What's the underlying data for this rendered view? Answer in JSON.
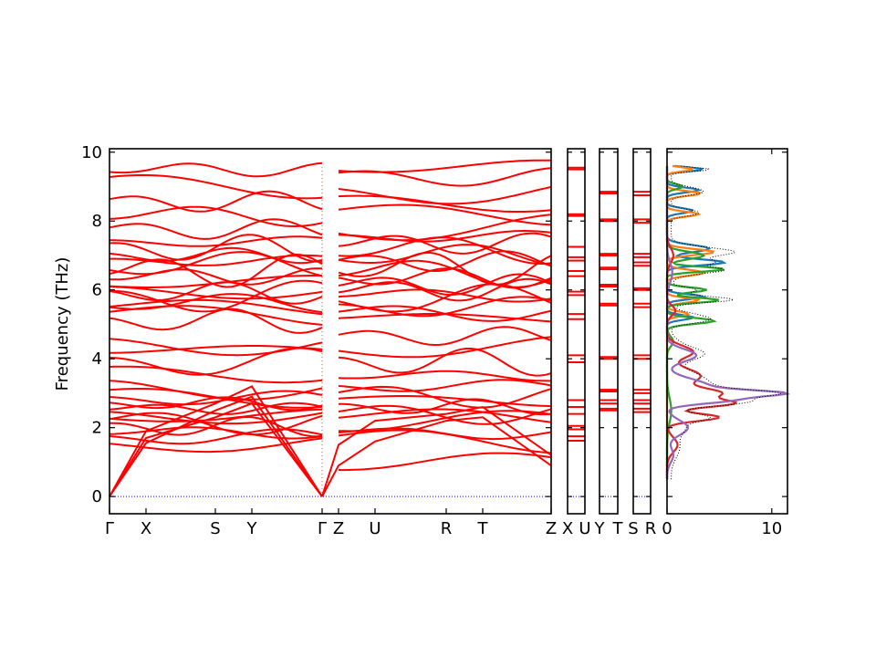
{
  "chart_data": {
    "type": "line",
    "ylabel": "Frequency (THz)",
    "ylim": [
      -0.5,
      10.1
    ],
    "yticks": [
      "0",
      "2",
      "4",
      "6",
      "8",
      "10"
    ],
    "xticks": [
      "Γ",
      "X",
      "S",
      "Y",
      "Γ",
      "Z",
      "U",
      "R",
      "T",
      "Z"
    ],
    "xticks_small_panels": [
      [
        "X",
        "U"
      ],
      [
        "Y",
        "T"
      ],
      [
        "S",
        "R"
      ]
    ],
    "dos_xlim": [
      0,
      11.5
    ],
    "dos_xticks": [
      "0",
      "10"
    ],
    "band_color": "#ff0000",
    "zero_line_color": "#0000ff",
    "dos_colors": [
      "#1f77b4",
      "#ff7f0e",
      "#2ca02c",
      "#d62728",
      "#9467bd"
    ],
    "dos_total_color": "#000000",
    "optical_levels_gamma": [
      1.58,
      1.72,
      1.86,
      2.02,
      2.18,
      2.34,
      2.45,
      2.55,
      2.7,
      2.85,
      2.95,
      3.3,
      3.65,
      3.9,
      4.2,
      4.55,
      5.1,
      5.25,
      5.45,
      5.6,
      5.8,
      5.92,
      6.05,
      6.2,
      6.4,
      6.55,
      6.7,
      6.85,
      7.0,
      7.2,
      7.4,
      7.75,
      8.15,
      8.55,
      9.1,
      9.5
    ],
    "optical_levels_z": [
      0.88,
      1.62,
      1.85,
      2.05,
      2.25,
      2.42,
      2.6,
      2.78,
      2.95,
      3.2,
      3.5,
      3.9,
      4.35,
      4.65,
      5.15,
      5.35,
      5.5,
      5.7,
      5.85,
      6.0,
      6.15,
      6.35,
      6.5,
      6.65,
      6.82,
      6.98,
      7.15,
      7.35,
      7.55,
      7.8,
      8.2,
      8.6,
      8.95,
      9.3,
      9.55
    ],
    "small_panel_levels": [
      [
        1.62,
        1.75,
        1.95,
        2.05,
        2.4,
        2.6,
        2.8,
        3.9,
        4.1,
        5.15,
        5.3,
        5.85,
        5.95,
        6.4,
        6.55,
        6.85,
        6.95,
        7.25,
        8.15,
        8.2,
        9.5,
        9.55
      ],
      [
        2.5,
        2.55,
        2.7,
        2.8,
        3.05,
        3.1,
        4.0,
        4.05,
        5.55,
        5.6,
        6.1,
        6.15,
        6.6,
        6.65,
        7.0,
        7.05,
        8.0,
        8.05,
        8.8,
        8.85
      ],
      [
        2.45,
        2.55,
        2.7,
        2.8,
        3.0,
        3.1,
        4.0,
        4.1,
        5.5,
        5.6,
        6.0,
        6.05,
        6.7,
        6.8,
        6.95,
        7.05,
        7.95,
        8.05,
        8.75,
        8.85
      ]
    ]
  }
}
